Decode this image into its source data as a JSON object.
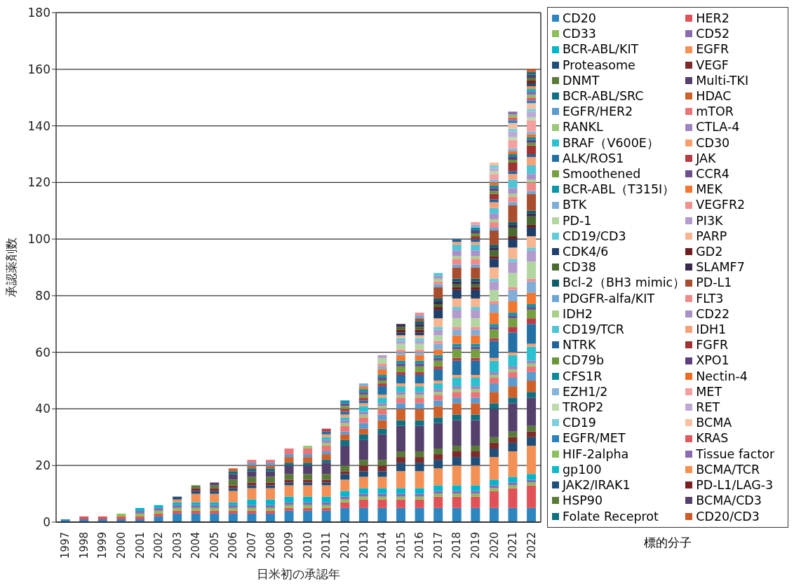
{
  "chart_data": {
    "type": "bar",
    "stacked": true,
    "xlabel": "日米初の承認年",
    "ylabel": "承認薬剤数",
    "legend_title": "標的分子",
    "legend": "right",
    "grid": "y",
    "ylim": [
      0,
      180
    ],
    "yticks": [
      0,
      20,
      40,
      60,
      80,
      100,
      120,
      140,
      160,
      180
    ],
    "categories": [
      "1997",
      "1998",
      "1999",
      "2000",
      "2001",
      "2002",
      "2003",
      "2004",
      "2005",
      "2006",
      "2007",
      "2008",
      "2009",
      "2010",
      "2011",
      "2012",
      "2013",
      "2014",
      "2015",
      "2016",
      "2017",
      "2018",
      "2019",
      "2020",
      "2021",
      "2022"
    ],
    "series": [
      {
        "name": "CD20",
        "color": "#2e86c1",
        "values": [
          1,
          1,
          1,
          1,
          1,
          2,
          3,
          3,
          3,
          3,
          3,
          3,
          4,
          4,
          4,
          5,
          5,
          5,
          5,
          5,
          5,
          5,
          5,
          5,
          5,
          5
        ]
      },
      {
        "name": "HER2",
        "color": "#e05257",
        "values": [
          0,
          1,
          1,
          1,
          1,
          1,
          1,
          1,
          1,
          1,
          1,
          1,
          1,
          1,
          1,
          2,
          3,
          3,
          3,
          3,
          4,
          4,
          4,
          6,
          7,
          8
        ]
      },
      {
        "name": "CD33",
        "color": "#8cbf5a",
        "values": [
          0,
          0,
          0,
          1,
          1,
          1,
          1,
          1,
          1,
          1,
          1,
          1,
          1,
          1,
          1,
          1,
          1,
          1,
          1,
          1,
          1,
          1,
          1,
          1,
          1,
          1
        ]
      },
      {
        "name": "CD52",
        "color": "#8a6bb0",
        "values": [
          0,
          0,
          0,
          0,
          1,
          1,
          1,
          1,
          1,
          1,
          1,
          1,
          1,
          1,
          1,
          1,
          1,
          1,
          1,
          1,
          1,
          1,
          1,
          1,
          1,
          1
        ]
      },
      {
        "name": "BCR-ABL/KIT",
        "color": "#00b5cc",
        "values": [
          0,
          0,
          0,
          0,
          1,
          1,
          1,
          1,
          1,
          1,
          2,
          2,
          2,
          2,
          2,
          2,
          2,
          2,
          2,
          2,
          2,
          2,
          2,
          2,
          2,
          2
        ]
      },
      {
        "name": "EGFR",
        "color": "#f39055",
        "values": [
          0,
          0,
          0,
          0,
          0,
          0,
          1,
          3,
          3,
          4,
          4,
          4,
          4,
          4,
          4,
          4,
          4,
          4,
          6,
          6,
          6,
          7,
          7,
          8,
          9,
          10
        ]
      },
      {
        "name": "Proteasome",
        "color": "#1f4e79",
        "values": [
          0,
          0,
          0,
          0,
          0,
          0,
          1,
          1,
          1,
          1,
          1,
          1,
          1,
          1,
          1,
          2,
          2,
          2,
          3,
          3,
          3,
          3,
          3,
          3,
          3,
          3
        ]
      },
      {
        "name": "VEGF",
        "color": "#7f2a2a",
        "values": [
          0,
          0,
          0,
          0,
          0,
          0,
          0,
          1,
          1,
          1,
          1,
          1,
          1,
          1,
          1,
          1,
          2,
          2,
          2,
          2,
          2,
          2,
          2,
          2,
          2,
          2
        ]
      },
      {
        "name": "DNMT",
        "color": "#5a7a3a",
        "values": [
          0,
          0,
          0,
          0,
          0,
          0,
          0,
          1,
          1,
          2,
          2,
          2,
          2,
          2,
          2,
          2,
          2,
          2,
          2,
          2,
          2,
          2,
          2,
          2,
          2,
          2
        ]
      },
      {
        "name": "Multi-TKI",
        "color": "#553f6b",
        "values": [
          0,
          0,
          0,
          0,
          0,
          0,
          0,
          0,
          1,
          2,
          2,
          2,
          3,
          3,
          4,
          7,
          7,
          9,
          9,
          9,
          9,
          9,
          9,
          10,
          10,
          10
        ]
      },
      {
        "name": "BCR-ABL/SRC",
        "color": "#10707f",
        "values": [
          0,
          0,
          0,
          0,
          0,
          0,
          0,
          0,
          0,
          1,
          1,
          1,
          1,
          1,
          1,
          2,
          2,
          2,
          2,
          2,
          2,
          2,
          2,
          2,
          2,
          2
        ]
      },
      {
        "name": "HDAC",
        "color": "#d0602a",
        "values": [
          0,
          0,
          0,
          0,
          0,
          0,
          0,
          0,
          0,
          1,
          1,
          1,
          2,
          2,
          2,
          2,
          2,
          3,
          4,
          4,
          4,
          4,
          4,
          4,
          4,
          4
        ]
      },
      {
        "name": "EGFR/HER2",
        "color": "#5a9bd0",
        "values": [
          0,
          0,
          0,
          0,
          0,
          0,
          0,
          0,
          0,
          0,
          1,
          1,
          1,
          1,
          1,
          1,
          2,
          2,
          2,
          2,
          2,
          2,
          2,
          3,
          3,
          3
        ]
      },
      {
        "name": "mTOR",
        "color": "#eb7478",
        "values": [
          0,
          0,
          0,
          0,
          0,
          0,
          0,
          0,
          0,
          0,
          1,
          1,
          2,
          2,
          2,
          2,
          2,
          2,
          2,
          2,
          2,
          2,
          2,
          2,
          2,
          2
        ]
      },
      {
        "name": "RANKL",
        "color": "#9dc77a",
        "values": [
          0,
          0,
          0,
          0,
          0,
          0,
          0,
          0,
          0,
          0,
          0,
          0,
          0,
          1,
          1,
          1,
          1,
          1,
          1,
          1,
          1,
          1,
          1,
          1,
          1,
          1
        ]
      },
      {
        "name": "CTLA-4",
        "color": "#9e85c0",
        "values": [
          0,
          0,
          0,
          0,
          0,
          0,
          0,
          0,
          0,
          0,
          0,
          0,
          0,
          0,
          1,
          1,
          1,
          1,
          1,
          1,
          1,
          1,
          1,
          1,
          1,
          1
        ]
      },
      {
        "name": "BRAF（V600E）",
        "color": "#2cc0d0",
        "values": [
          0,
          0,
          0,
          0,
          0,
          0,
          0,
          0,
          0,
          0,
          0,
          0,
          0,
          0,
          1,
          1,
          2,
          2,
          2,
          2,
          2,
          3,
          3,
          4,
          4,
          5
        ]
      },
      {
        "name": "CD30",
        "color": "#f7a06e",
        "values": [
          0,
          0,
          0,
          0,
          0,
          0,
          0,
          0,
          0,
          0,
          0,
          0,
          0,
          0,
          1,
          1,
          1,
          1,
          1,
          1,
          1,
          1,
          1,
          1,
          1,
          1
        ]
      },
      {
        "name": "ALK/ROS1",
        "color": "#2370a5",
        "values": [
          0,
          0,
          0,
          0,
          0,
          0,
          0,
          0,
          0,
          0,
          0,
          0,
          0,
          0,
          1,
          1,
          1,
          3,
          3,
          3,
          4,
          5,
          5,
          6,
          7,
          7
        ]
      },
      {
        "name": "JAK",
        "color": "#b83c45",
        "values": [
          0,
          0,
          0,
          0,
          0,
          0,
          0,
          0,
          0,
          0,
          0,
          0,
          0,
          0,
          1,
          1,
          1,
          1,
          1,
          1,
          1,
          1,
          1,
          1,
          2,
          2
        ]
      },
      {
        "name": "Smoothened",
        "color": "#74a040",
        "values": [
          0,
          0,
          0,
          0,
          0,
          0,
          0,
          0,
          0,
          0,
          0,
          0,
          0,
          0,
          0,
          1,
          1,
          1,
          2,
          2,
          2,
          3,
          3,
          3,
          3,
          3
        ]
      },
      {
        "name": "CCR4",
        "color": "#6e4f8e",
        "values": [
          0,
          0,
          0,
          0,
          0,
          0,
          0,
          0,
          0,
          0,
          0,
          0,
          0,
          0,
          0,
          1,
          1,
          1,
          1,
          1,
          1,
          1,
          1,
          1,
          1,
          1
        ]
      },
      {
        "name": "BCR-ABL（T315I）",
        "color": "#0c96aa",
        "values": [
          0,
          0,
          0,
          0,
          0,
          0,
          0,
          0,
          0,
          0,
          0,
          0,
          0,
          0,
          0,
          1,
          1,
          1,
          1,
          1,
          1,
          1,
          1,
          1,
          1,
          1
        ]
      },
      {
        "name": "MEK",
        "color": "#f27730",
        "values": [
          0,
          0,
          0,
          0,
          0,
          0,
          0,
          0,
          0,
          0,
          0,
          0,
          0,
          0,
          0,
          0,
          1,
          2,
          2,
          2,
          2,
          3,
          3,
          4,
          4,
          4
        ]
      },
      {
        "name": "BTK",
        "color": "#80aed6",
        "values": [
          0,
          0,
          0,
          0,
          0,
          0,
          0,
          0,
          0,
          0,
          0,
          0,
          0,
          0,
          0,
          0,
          1,
          1,
          1,
          1,
          2,
          2,
          2,
          3,
          4,
          4
        ]
      },
      {
        "name": "VEGFR2",
        "color": "#f09090",
        "values": [
          0,
          0,
          0,
          0,
          0,
          0,
          0,
          0,
          0,
          0,
          0,
          0,
          0,
          0,
          0,
          0,
          0,
          1,
          1,
          1,
          1,
          1,
          1,
          1,
          1,
          1
        ]
      },
      {
        "name": "PD-1",
        "color": "#b2d6a0",
        "values": [
          0,
          0,
          0,
          0,
          0,
          0,
          0,
          0,
          0,
          0,
          0,
          0,
          0,
          0,
          0,
          0,
          0,
          2,
          2,
          2,
          2,
          3,
          3,
          4,
          5,
          6
        ]
      },
      {
        "name": "PI3K",
        "color": "#b39ccc",
        "values": [
          0,
          0,
          0,
          0,
          0,
          0,
          0,
          0,
          0,
          0,
          0,
          0,
          0,
          0,
          0,
          0,
          0,
          1,
          1,
          1,
          2,
          3,
          3,
          3,
          4,
          4
        ]
      },
      {
        "name": "CD19/CD3",
        "color": "#60ccd8",
        "values": [
          0,
          0,
          0,
          0,
          0,
          0,
          0,
          0,
          0,
          0,
          0,
          0,
          0,
          0,
          0,
          0,
          0,
          0,
          1,
          1,
          1,
          1,
          1,
          1,
          1,
          1
        ]
      },
      {
        "name": "PARP",
        "color": "#f8b690",
        "values": [
          0,
          0,
          0,
          0,
          0,
          0,
          0,
          0,
          0,
          0,
          0,
          0,
          0,
          0,
          0,
          0,
          0,
          0,
          1,
          1,
          3,
          3,
          3,
          4,
          4,
          4
        ]
      },
      {
        "name": "CDK4/6",
        "color": "#1d3f6a",
        "values": [
          0,
          0,
          0,
          0,
          0,
          0,
          0,
          0,
          0,
          0,
          0,
          0,
          0,
          0,
          0,
          0,
          0,
          0,
          1,
          1,
          3,
          3,
          3,
          3,
          3,
          3
        ]
      },
      {
        "name": "GD2",
        "color": "#6e1e1e",
        "values": [
          0,
          0,
          0,
          0,
          0,
          0,
          0,
          0,
          0,
          0,
          0,
          0,
          0,
          0,
          0,
          0,
          0,
          0,
          1,
          1,
          1,
          1,
          1,
          1,
          1,
          1
        ]
      },
      {
        "name": "CD38",
        "color": "#4a6a30",
        "values": [
          0,
          0,
          0,
          0,
          0,
          0,
          0,
          0,
          0,
          0,
          0,
          0,
          0,
          0,
          0,
          0,
          0,
          0,
          1,
          1,
          1,
          1,
          1,
          2,
          3,
          3
        ]
      },
      {
        "name": "SLAMF7",
        "color": "#3a2a50",
        "values": [
          0,
          0,
          0,
          0,
          0,
          0,
          0,
          0,
          0,
          0,
          0,
          0,
          0,
          0,
          0,
          0,
          0,
          0,
          1,
          1,
          1,
          1,
          1,
          1,
          1,
          1
        ]
      },
      {
        "name": "Bcl-2（BH3 mimic）",
        "color": "#0e5e68",
        "values": [
          0,
          0,
          0,
          0,
          0,
          0,
          0,
          0,
          0,
          0,
          0,
          0,
          0,
          0,
          0,
          0,
          0,
          0,
          0,
          1,
          1,
          1,
          1,
          1,
          1,
          1
        ]
      },
      {
        "name": "PD-L1",
        "color": "#a84e2e",
        "values": [
          0,
          0,
          0,
          0,
          0,
          0,
          0,
          0,
          0,
          0,
          0,
          0,
          0,
          0,
          0,
          0,
          0,
          0,
          0,
          1,
          4,
          4,
          4,
          5,
          6,
          6
        ]
      },
      {
        "name": "PDGFR-alfa/KIT",
        "color": "#6aa6d6",
        "values": [
          0,
          0,
          0,
          0,
          0,
          0,
          0,
          0,
          0,
          0,
          0,
          0,
          0,
          0,
          0,
          0,
          0,
          0,
          0,
          1,
          1,
          1,
          1,
          1,
          1,
          1
        ]
      },
      {
        "name": "FLT3",
        "color": "#f08a8a",
        "values": [
          0,
          0,
          0,
          0,
          0,
          0,
          0,
          0,
          0,
          0,
          0,
          0,
          0,
          0,
          0,
          0,
          0,
          0,
          0,
          1,
          1,
          2,
          2,
          2,
          2,
          3
        ]
      },
      {
        "name": "IDH2",
        "color": "#a8d08a",
        "values": [
          0,
          0,
          0,
          0,
          0,
          0,
          0,
          0,
          0,
          0,
          0,
          0,
          0,
          0,
          0,
          0,
          0,
          0,
          0,
          0,
          1,
          1,
          1,
          1,
          1,
          1
        ]
      },
      {
        "name": "CD22",
        "color": "#a890c8",
        "values": [
          0,
          0,
          0,
          0,
          0,
          0,
          0,
          0,
          0,
          0,
          0,
          0,
          0,
          0,
          0,
          0,
          0,
          0,
          0,
          0,
          1,
          2,
          2,
          2,
          2,
          2
        ]
      },
      {
        "name": "CD19/TCR",
        "color": "#50c4d4",
        "values": [
          0,
          0,
          0,
          0,
          0,
          0,
          0,
          0,
          0,
          0,
          0,
          0,
          0,
          0,
          0,
          0,
          0,
          0,
          0,
          0,
          1,
          2,
          2,
          2,
          3,
          3
        ]
      },
      {
        "name": "IDH1",
        "color": "#f4a27a",
        "values": [
          0,
          0,
          0,
          0,
          0,
          0,
          0,
          0,
          0,
          0,
          0,
          0,
          0,
          0,
          0,
          0,
          0,
          0,
          0,
          0,
          0,
          1,
          1,
          2,
          2,
          3
        ]
      },
      {
        "name": "NTRK",
        "color": "#22649a",
        "values": [
          0,
          0,
          0,
          0,
          0,
          0,
          0,
          0,
          0,
          0,
          0,
          0,
          0,
          0,
          0,
          0,
          0,
          0,
          0,
          0,
          0,
          1,
          1,
          1,
          1,
          1
        ]
      },
      {
        "name": "FGFR",
        "color": "#a03232",
        "values": [
          0,
          0,
          0,
          0,
          0,
          0,
          0,
          0,
          0,
          0,
          0,
          0,
          0,
          0,
          0,
          0,
          0,
          0,
          0,
          0,
          0,
          0,
          1,
          2,
          3,
          3
        ]
      },
      {
        "name": "CD79b",
        "color": "#6a963a",
        "values": [
          0,
          0,
          0,
          0,
          0,
          0,
          0,
          0,
          0,
          0,
          0,
          0,
          0,
          0,
          0,
          0,
          0,
          0,
          0,
          0,
          0,
          0,
          1,
          1,
          1,
          1
        ]
      },
      {
        "name": "XPO1",
        "color": "#5e3e7e",
        "values": [
          0,
          0,
          0,
          0,
          0,
          0,
          0,
          0,
          0,
          0,
          0,
          0,
          0,
          0,
          0,
          0,
          0,
          0,
          0,
          0,
          0,
          0,
          1,
          1,
          1,
          1
        ]
      },
      {
        "name": "CFS1R",
        "color": "#0e8a98",
        "values": [
          0,
          0,
          0,
          0,
          0,
          0,
          0,
          0,
          0,
          0,
          0,
          0,
          0,
          0,
          0,
          0,
          0,
          0,
          0,
          0,
          0,
          0,
          1,
          1,
          1,
          1
        ]
      },
      {
        "name": "Nectin-4",
        "color": "#f06a20",
        "values": [
          0,
          0,
          0,
          0,
          0,
          0,
          0,
          0,
          0,
          0,
          0,
          0,
          0,
          0,
          0,
          0,
          0,
          0,
          0,
          0,
          0,
          0,
          0,
          1,
          1,
          1
        ]
      },
      {
        "name": "EZH1/2",
        "color": "#86b4da",
        "values": [
          0,
          0,
          0,
          0,
          0,
          0,
          0,
          0,
          0,
          0,
          0,
          0,
          0,
          0,
          0,
          0,
          0,
          0,
          0,
          0,
          0,
          0,
          1,
          1,
          1,
          1
        ]
      },
      {
        "name": "MET",
        "color": "#f4a0a0",
        "values": [
          0,
          0,
          0,
          0,
          0,
          0,
          0,
          0,
          0,
          0,
          0,
          0,
          0,
          0,
          0,
          0,
          0,
          0,
          0,
          0,
          0,
          0,
          1,
          2,
          3,
          4
        ]
      },
      {
        "name": "TROP2",
        "color": "#bcdaaa",
        "values": [
          0,
          0,
          0,
          0,
          0,
          0,
          0,
          0,
          0,
          0,
          0,
          0,
          0,
          0,
          0,
          0,
          0,
          0,
          0,
          0,
          0,
          0,
          0,
          1,
          1,
          1
        ]
      },
      {
        "name": "RET",
        "color": "#bcaad4",
        "values": [
          0,
          0,
          0,
          0,
          0,
          0,
          0,
          0,
          0,
          0,
          0,
          0,
          0,
          0,
          0,
          0,
          0,
          0,
          0,
          0,
          0,
          0,
          0,
          1,
          2,
          2
        ]
      },
      {
        "name": "CD19",
        "color": "#7ccfdc",
        "values": [
          0,
          0,
          0,
          0,
          0,
          0,
          0,
          0,
          0,
          0,
          0,
          0,
          0,
          0,
          0,
          0,
          0,
          0,
          0,
          0,
          0,
          0,
          0,
          1,
          1,
          1
        ]
      },
      {
        "name": "BCMA",
        "color": "#f8c0a0",
        "values": [
          0,
          0,
          0,
          0,
          0,
          0,
          0,
          0,
          0,
          0,
          0,
          0,
          0,
          0,
          0,
          0,
          0,
          0,
          0,
          0,
          0,
          0,
          0,
          1,
          2,
          2
        ]
      },
      {
        "name": "EGFR/MET",
        "color": "#2a80c0",
        "values": [
          0,
          0,
          0,
          0,
          0,
          0,
          0,
          0,
          0,
          0,
          0,
          0,
          0,
          0,
          0,
          0,
          0,
          0,
          0,
          0,
          0,
          0,
          0,
          0,
          1,
          1
        ]
      },
      {
        "name": "KRAS",
        "color": "#e05a60",
        "values": [
          0,
          0,
          0,
          0,
          0,
          0,
          0,
          0,
          0,
          0,
          0,
          0,
          0,
          0,
          0,
          0,
          0,
          0,
          0,
          0,
          0,
          0,
          0,
          0,
          1,
          1
        ]
      },
      {
        "name": "HIF-2alpha",
        "color": "#8cc060",
        "values": [
          0,
          0,
          0,
          0,
          0,
          0,
          0,
          0,
          0,
          0,
          0,
          0,
          0,
          0,
          0,
          0,
          0,
          0,
          0,
          0,
          0,
          0,
          0,
          0,
          1,
          1
        ]
      },
      {
        "name": "Tissue factor",
        "color": "#8a6ab0",
        "values": [
          0,
          0,
          0,
          0,
          0,
          0,
          0,
          0,
          0,
          0,
          0,
          0,
          0,
          0,
          0,
          0,
          0,
          0,
          0,
          0,
          0,
          0,
          0,
          0,
          1,
          1
        ]
      },
      {
        "name": "gp100",
        "color": "#10b8c8",
        "values": [
          0,
          0,
          0,
          0,
          0,
          0,
          0,
          0,
          0,
          0,
          0,
          0,
          0,
          0,
          0,
          0,
          0,
          0,
          0,
          0,
          0,
          0,
          0,
          0,
          0,
          1
        ]
      },
      {
        "name": "BCMA/TCR",
        "color": "#f59050",
        "values": [
          0,
          0,
          0,
          0,
          0,
          0,
          0,
          0,
          0,
          0,
          0,
          0,
          0,
          0,
          0,
          0,
          0,
          0,
          0,
          0,
          0,
          0,
          0,
          0,
          0,
          1
        ]
      },
      {
        "name": "JAK2/IRAK1",
        "color": "#1f4e79",
        "values": [
          0,
          0,
          0,
          0,
          0,
          0,
          0,
          0,
          0,
          0,
          0,
          0,
          0,
          0,
          0,
          0,
          0,
          0,
          0,
          0,
          0,
          0,
          0,
          0,
          0,
          1
        ]
      },
      {
        "name": "PD-L1/LAG-3",
        "color": "#7a2020",
        "values": [
          0,
          0,
          0,
          0,
          0,
          0,
          0,
          0,
          0,
          0,
          0,
          0,
          0,
          0,
          0,
          0,
          0,
          0,
          0,
          0,
          0,
          0,
          0,
          0,
          0,
          1
        ]
      },
      {
        "name": "HSP90",
        "color": "#5a7a3a",
        "values": [
          0,
          0,
          0,
          0,
          0,
          0,
          0,
          0,
          0,
          0,
          0,
          0,
          0,
          0,
          0,
          0,
          0,
          0,
          0,
          0,
          0,
          0,
          0,
          0,
          0,
          1
        ]
      },
      {
        "name": "BCMA/CD3",
        "color": "#553f6b",
        "values": [
          0,
          0,
          0,
          0,
          0,
          0,
          0,
          0,
          0,
          0,
          0,
          0,
          0,
          0,
          0,
          0,
          0,
          0,
          0,
          0,
          0,
          0,
          0,
          0,
          0,
          1
        ]
      },
      {
        "name": "Folate Receprot",
        "color": "#107080",
        "values": [
          0,
          0,
          0,
          0,
          0,
          0,
          0,
          0,
          0,
          0,
          0,
          0,
          0,
          0,
          0,
          0,
          0,
          0,
          0,
          0,
          0,
          0,
          0,
          0,
          0,
          1
        ]
      },
      {
        "name": "CD20/CD3",
        "color": "#d05a28",
        "values": [
          0,
          0,
          0,
          0,
          0,
          0,
          0,
          0,
          0,
          0,
          0,
          0,
          0,
          0,
          0,
          0,
          0,
          0,
          0,
          0,
          0,
          0,
          0,
          0,
          0,
          1
        ]
      }
    ]
  }
}
